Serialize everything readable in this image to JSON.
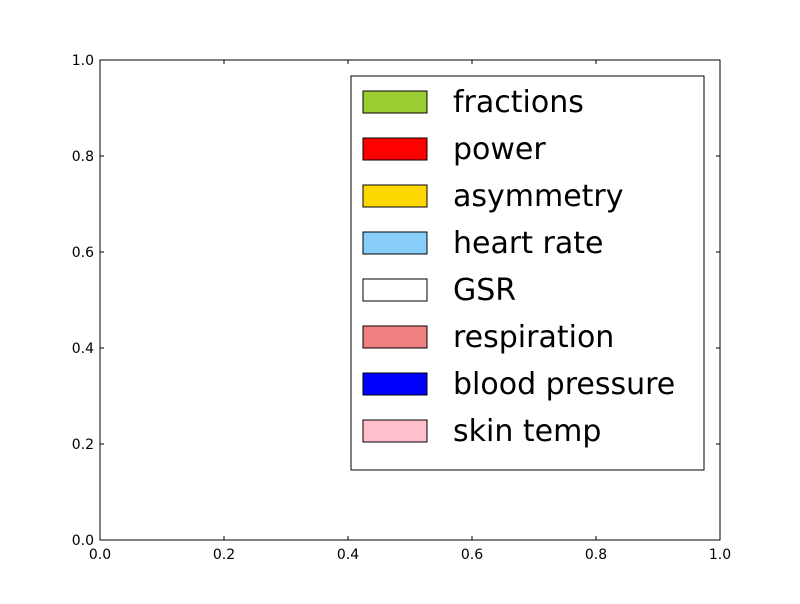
{
  "chart_data": {
    "type": "bar",
    "title": "",
    "xlabel": "",
    "ylabel": "",
    "xlim": [
      0.0,
      1.0
    ],
    "ylim": [
      0.0,
      1.0
    ],
    "x_ticks": [
      "0.0",
      "0.2",
      "0.4",
      "0.6",
      "0.8",
      "1.0"
    ],
    "y_ticks": [
      "0.0",
      "0.2",
      "0.4",
      "0.6",
      "0.8",
      "1.0"
    ],
    "grid": false,
    "legend_placement": "upper-right",
    "series": [
      {
        "name": "fractions",
        "color": "#9acd32"
      },
      {
        "name": "power",
        "color": "#ff0000"
      },
      {
        "name": "asymmetry",
        "color": "#ffd700"
      },
      {
        "name": "heart rate",
        "color": "#87cefa"
      },
      {
        "name": "GSR",
        "color": "#ffffff"
      },
      {
        "name": "respiration",
        "color": "#f08080"
      },
      {
        "name": "blood pressure",
        "color": "#0000ff"
      },
      {
        "name": "skin temp",
        "color": "#ffc0cb"
      }
    ]
  }
}
